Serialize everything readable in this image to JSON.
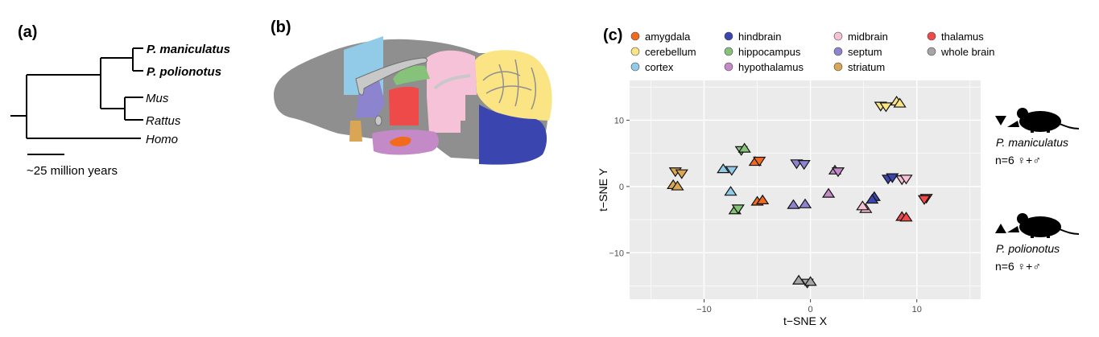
{
  "panels": {
    "a": {
      "label": "(a)"
    },
    "b": {
      "label": "(b)"
    },
    "c": {
      "label": "(c)"
    }
  },
  "tree": {
    "taxa": [
      "P. maniculatus",
      "P. polionotus",
      "Mus",
      "Rattus",
      "Homo"
    ],
    "scale_label": "~25 million years"
  },
  "legend": [
    {
      "name": "amygdala",
      "color": "#f26b1d"
    },
    {
      "name": "cerebellum",
      "color": "#fbe483"
    },
    {
      "name": "cortex",
      "color": "#92cbe8"
    },
    {
      "name": "hindbrain",
      "color": "#3a45b0"
    },
    {
      "name": "hippocampus",
      "color": "#86c27a"
    },
    {
      "name": "hypothalamus",
      "color": "#c48ac8"
    },
    {
      "name": "midbrain",
      "color": "#f6c2d8"
    },
    {
      "name": "septum",
      "color": "#8c84cf"
    },
    {
      "name": "striatum",
      "color": "#d9a656"
    },
    {
      "name": "thalamus",
      "color": "#ef4a4a"
    },
    {
      "name": "whole brain",
      "color": "#a6a6a6"
    }
  ],
  "species_key": {
    "maniculatus": {
      "name": "P.  maniculatus",
      "n": "n=6  ♀+♂",
      "symbol": "down-triangle"
    },
    "polionotus": {
      "name": "P.  polionotus",
      "n": "n=6  ♀+♂",
      "symbol": "up-triangle"
    }
  },
  "chart_data": {
    "type": "scatter",
    "xlabel": "t−SNE X",
    "ylabel": "t−SNE Y",
    "xlim": [
      -17,
      16
    ],
    "ylim": [
      -17,
      16
    ],
    "xticks": [
      -10,
      0,
      10
    ],
    "yticks": [
      -10,
      0,
      10
    ],
    "tick_labels_x": [
      "−10",
      "0",
      "10"
    ],
    "tick_labels_y": [
      "−10",
      "0",
      "10"
    ],
    "grid": true,
    "points": [
      {
        "region": "cerebellum",
        "x": 6.6,
        "y": 12.2,
        "s": "down"
      },
      {
        "region": "cerebellum",
        "x": 7.1,
        "y": 12.1,
        "s": "down"
      },
      {
        "region": "cerebellum",
        "x": 8.1,
        "y": 12.8,
        "s": "up"
      },
      {
        "region": "cerebellum",
        "x": 8.4,
        "y": 12.5,
        "s": "up"
      },
      {
        "region": "hippocampus",
        "x": -6.5,
        "y": 5.5,
        "s": "down"
      },
      {
        "region": "hippocampus",
        "x": -6.2,
        "y": 5.7,
        "s": "up"
      },
      {
        "region": "hippocampus",
        "x": -7.1,
        "y": -3.6,
        "s": "up"
      },
      {
        "region": "hippocampus",
        "x": -6.8,
        "y": -3.3,
        "s": "down"
      },
      {
        "region": "amygdala",
        "x": -5.2,
        "y": 3.7,
        "s": "up"
      },
      {
        "region": "amygdala",
        "x": -4.8,
        "y": 3.9,
        "s": "down"
      },
      {
        "region": "amygdala",
        "x": -5.0,
        "y": -2.3,
        "s": "up"
      },
      {
        "region": "amygdala",
        "x": -4.5,
        "y": -2.1,
        "s": "up"
      },
      {
        "region": "striatum",
        "x": -12.7,
        "y": 2.3,
        "s": "down"
      },
      {
        "region": "striatum",
        "x": -12.1,
        "y": 2.0,
        "s": "down"
      },
      {
        "region": "striatum",
        "x": -12.9,
        "y": 0.2,
        "s": "up"
      },
      {
        "region": "striatum",
        "x": -12.5,
        "y": 0.0,
        "s": "up"
      },
      {
        "region": "cortex",
        "x": -8.2,
        "y": 2.6,
        "s": "up"
      },
      {
        "region": "cortex",
        "x": -7.4,
        "y": 2.5,
        "s": "down"
      },
      {
        "region": "cortex",
        "x": -7.5,
        "y": -0.8,
        "s": "up"
      },
      {
        "region": "septum",
        "x": -1.3,
        "y": 3.5,
        "s": "down"
      },
      {
        "region": "septum",
        "x": -0.6,
        "y": 3.4,
        "s": "down"
      },
      {
        "region": "septum",
        "x": -1.6,
        "y": -2.8,
        "s": "up"
      },
      {
        "region": "septum",
        "x": -0.5,
        "y": -2.7,
        "s": "up"
      },
      {
        "region": "hypothalamus",
        "x": 2.3,
        "y": 2.4,
        "s": "up"
      },
      {
        "region": "hypothalamus",
        "x": 2.6,
        "y": 2.3,
        "s": "down"
      },
      {
        "region": "hypothalamus",
        "x": 1.7,
        "y": -1.1,
        "s": "up"
      },
      {
        "region": "hindbrain",
        "x": 6.0,
        "y": -1.6,
        "s": "up"
      },
      {
        "region": "hindbrain",
        "x": 5.8,
        "y": -2.0,
        "s": "up"
      },
      {
        "region": "hindbrain",
        "x": 7.3,
        "y": 1.2,
        "s": "down"
      },
      {
        "region": "hindbrain",
        "x": 7.7,
        "y": 1.4,
        "s": "down"
      },
      {
        "region": "midbrain",
        "x": 5.2,
        "y": -3.4,
        "s": "up"
      },
      {
        "region": "midbrain",
        "x": 4.9,
        "y": -3.0,
        "s": "up"
      },
      {
        "region": "midbrain",
        "x": 8.6,
        "y": 1.1,
        "s": "down"
      },
      {
        "region": "midbrain",
        "x": 9.0,
        "y": 1.2,
        "s": "down"
      },
      {
        "region": "thalamus",
        "x": 10.9,
        "y": -1.7,
        "s": "down"
      },
      {
        "region": "thalamus",
        "x": 10.7,
        "y": -1.9,
        "s": "down"
      },
      {
        "region": "thalamus",
        "x": 8.6,
        "y": -4.6,
        "s": "up"
      },
      {
        "region": "thalamus",
        "x": 9.0,
        "y": -4.7,
        "s": "up"
      },
      {
        "region": "whole brain",
        "x": -1.1,
        "y": -14.2,
        "s": "up"
      },
      {
        "region": "whole brain",
        "x": -0.3,
        "y": -14.5,
        "s": "down"
      },
      {
        "region": "whole brain",
        "x": 0.0,
        "y": -14.4,
        "s": "up"
      }
    ]
  }
}
